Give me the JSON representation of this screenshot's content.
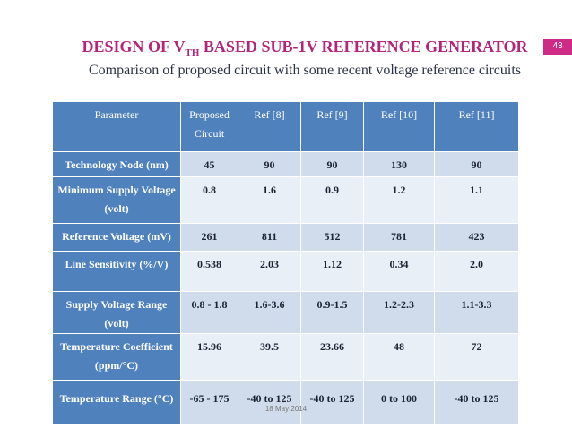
{
  "slide": {
    "title_part1": "DESIGN OF V",
    "title_sub": "TH",
    "title_part2": " BASED SUB-1V REFERENCE GENERATOR",
    "page_number": "43",
    "subtitle": "Comparison of proposed circuit with some recent voltage reference circuits",
    "footer_date": "18 May 2014"
  },
  "table": {
    "headers": [
      "Parameter",
      "Proposed Circuit",
      "Ref [8]",
      "Ref [9]",
      "Ref [10]",
      "Ref [11]"
    ],
    "rows": [
      {
        "label": "Technology Node (nm)",
        "values": [
          "45",
          "90",
          "90",
          "130",
          "90"
        ]
      },
      {
        "label": "Minimum Supply Voltage (volt)",
        "values": [
          "0.8",
          "1.6",
          "0.9",
          "1.2",
          "1.1"
        ]
      },
      {
        "label": "Reference Voltage (mV)",
        "values": [
          "261",
          "811",
          "512",
          "781",
          "423"
        ]
      },
      {
        "label": "Line Sensitivity (%/V)",
        "values": [
          "0.538",
          "2.03",
          "1.12",
          "0.34",
          "2.0"
        ]
      },
      {
        "label": "Supply Voltage Range (volt)",
        "values": [
          "0.8 - 1.8",
          "1.6-3.6",
          "0.9-1.5",
          "1.2-2.3",
          "1.1-3.3"
        ]
      },
      {
        "label": "Temperature Coefficient (ppm/°C)",
        "values": [
          "15.96",
          "39.5",
          "23.66",
          "48",
          "72"
        ]
      },
      {
        "label": "Temperature Range (°C)",
        "values": [
          "-65 - 175",
          "-40 to 125",
          "-40 to 125",
          "0 to 100",
          "-40 to 125"
        ]
      }
    ]
  },
  "colors": {
    "title": "#b3247a",
    "page_number_bg": "#cc2b86",
    "header_bg": "#4f81bd",
    "row_dark": "#d0dcec",
    "row_light": "#e9eff7"
  }
}
